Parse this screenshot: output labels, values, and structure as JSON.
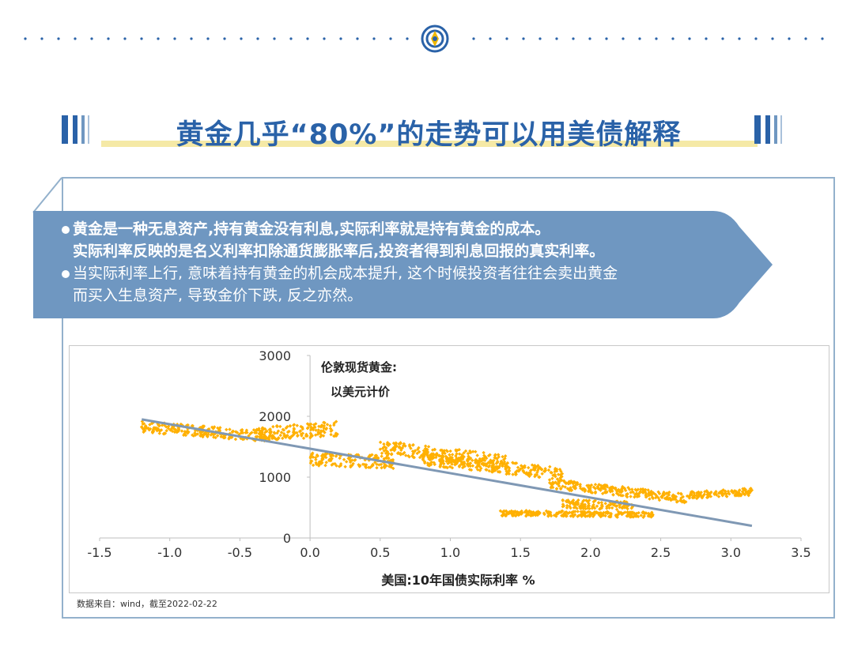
{
  "header": {
    "dot_color": "#2a62a8",
    "logo_icon": "circular-brand-logo-icon"
  },
  "title": {
    "text": "黄金几乎“80%”的走势可以用美债解释",
    "color": "#2a62a8",
    "underline_color": "#f5e9a6"
  },
  "banner": {
    "color": "#6f97c1",
    "lines": [
      "黄金是一种无息资产,持有黄金没有利息,实际利率就是持有黄金的成本。",
      "实际利率反映的是名义利率扣除通货膨胀率后,投资者得到利息回报的真实利率。",
      "当实际利率上行, 意味着持有黄金的机会成本提升, 这个时候投资者往往会卖出黄金",
      "而买入生息资产, 导致金价下跌, 反之亦然。"
    ]
  },
  "chart_data": {
    "type": "scatter",
    "title": "伦敦现货黄金:",
    "subtitle": "以美元计价",
    "xlabel": "美国:10年国债实际利率 %",
    "ylabel": "",
    "xlim": [
      -1.5,
      3.5
    ],
    "ylim": [
      0,
      3000
    ],
    "x_ticks": [
      "-1.5",
      "-1.0",
      "-0.5",
      "0.0",
      "0.5",
      "1.0",
      "1.5",
      "2.0",
      "2.5",
      "3.0",
      "3.5"
    ],
    "y_ticks": [
      "0",
      "1000",
      "2000",
      "3000"
    ],
    "point_color": "#ffb000",
    "trend_color": "#7f98b4",
    "series": [
      {
        "name": "伦敦现货黄金",
        "clusters": [
          {
            "x_range": [
              -1.2,
              -0.25
            ],
            "y_start": 1830,
            "y_end": 1660,
            "spread": 90
          },
          {
            "x_range": [
              -0.4,
              0.2
            ],
            "y_start": 1700,
            "y_end": 1800,
            "spread": 120
          },
          {
            "x_range": [
              0.0,
              0.6
            ],
            "y_start": 1300,
            "y_end": 1250,
            "spread": 110
          },
          {
            "x_range": [
              0.5,
              1.4
            ],
            "y_start": 1500,
            "y_end": 1250,
            "spread": 110
          },
          {
            "x_range": [
              0.8,
              1.8
            ],
            "y_start": 1300,
            "y_end": 1050,
            "spread": 100
          },
          {
            "x_range": [
              1.7,
              2.7
            ],
            "y_start": 900,
            "y_end": 640,
            "spread": 80
          },
          {
            "x_range": [
              2.7,
              3.15
            ],
            "y_start": 700,
            "y_end": 760,
            "spread": 60
          },
          {
            "x_range": [
              1.35,
              2.45
            ],
            "y_start": 410,
            "y_end": 380,
            "spread": 45
          },
          {
            "x_range": [
              1.8,
              2.3
            ],
            "y_start": 560,
            "y_end": 530,
            "spread": 70
          }
        ]
      }
    ],
    "trendline": {
      "x": [
        -1.2,
        3.15
      ],
      "y": [
        1950,
        200
      ]
    }
  },
  "source": "数据来自：wind，截至2022-02-22"
}
